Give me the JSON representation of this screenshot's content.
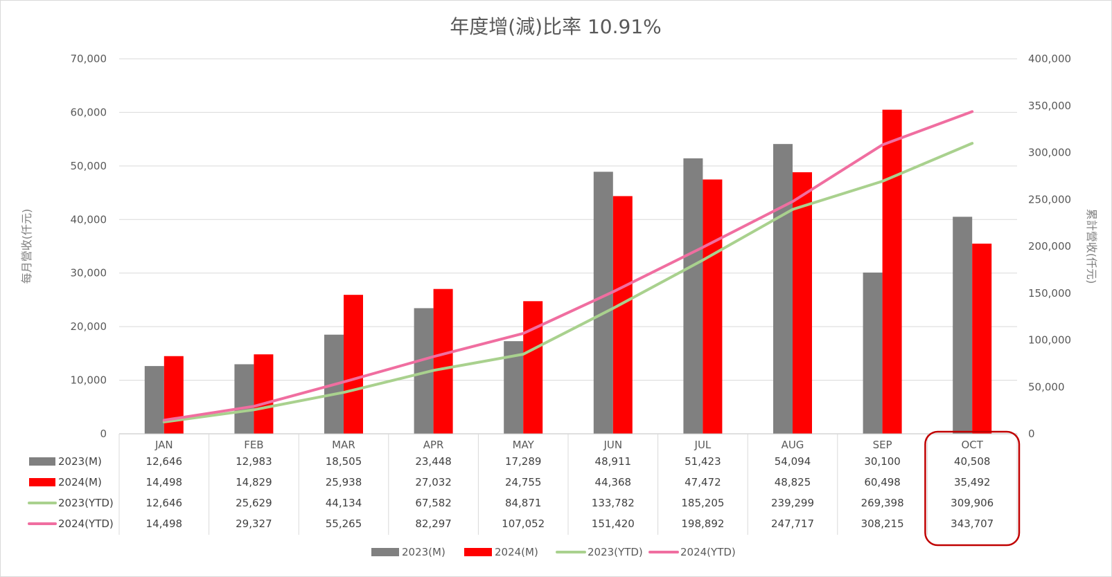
{
  "chart_data": {
    "type": "bar",
    "title": "年度增(減)比率 10.91%",
    "categories": [
      "JAN",
      "FEB",
      "MAR",
      "APR",
      "MAY",
      "JUN",
      "JUL",
      "AUG",
      "SEP",
      "OCT"
    ],
    "y_left_label": "每月營收(仟元)",
    "y_right_label": "累計營收(仟元)",
    "y_left_range": [
      0,
      70000
    ],
    "y_left_ticks": [
      "0",
      "10,000",
      "20,000",
      "30,000",
      "40,000",
      "50,000",
      "60,000",
      "70,000"
    ],
    "y_right_range": [
      0,
      400000
    ],
    "y_right_ticks": [
      "0",
      "50,000",
      "100,000",
      "150,000",
      "200,000",
      "250,000",
      "300,000",
      "350,000",
      "400,000"
    ],
    "grid": true,
    "legend_position": "bottom",
    "highlight": "OCT",
    "series": [
      {
        "name": "2023(M)",
        "type": "bar",
        "axis": "left",
        "color": "#808080",
        "values": [
          12646,
          12983,
          18505,
          23448,
          17289,
          48911,
          51423,
          54094,
          30100,
          40508
        ],
        "labels": [
          "12,646",
          "12,983",
          "18,505",
          "23,448",
          "17,289",
          "48,911",
          "51,423",
          "54,094",
          "30,100",
          "40,508"
        ]
      },
      {
        "name": "2024(M)",
        "type": "bar",
        "axis": "left",
        "color": "#ff0000",
        "values": [
          14498,
          14829,
          25938,
          27032,
          24755,
          44368,
          47472,
          48825,
          60498,
          35492
        ],
        "labels": [
          "14,498",
          "14,829",
          "25,938",
          "27,032",
          "24,755",
          "44,368",
          "47,472",
          "48,825",
          "60,498",
          "35,492"
        ]
      },
      {
        "name": "2023(YTD)",
        "type": "line",
        "axis": "right",
        "color": "#a9d18e",
        "values": [
          12646,
          25629,
          44134,
          67582,
          84871,
          133782,
          185205,
          239299,
          269398,
          309906
        ],
        "labels": [
          "12,646",
          "25,629",
          "44,134",
          "67,582",
          "84,871",
          "133,782",
          "185,205",
          "239,299",
          "269,398",
          "309,906"
        ]
      },
      {
        "name": "2024(YTD)",
        "type": "line",
        "axis": "right",
        "color": "#f06ea0",
        "values": [
          14498,
          29327,
          55265,
          82297,
          107052,
          151420,
          198892,
          247717,
          308215,
          343707
        ],
        "labels": [
          "14,498",
          "29,327",
          "55,265",
          "82,297",
          "107,052",
          "151,420",
          "198,892",
          "247,717",
          "308,215",
          "343,707"
        ]
      }
    ]
  }
}
